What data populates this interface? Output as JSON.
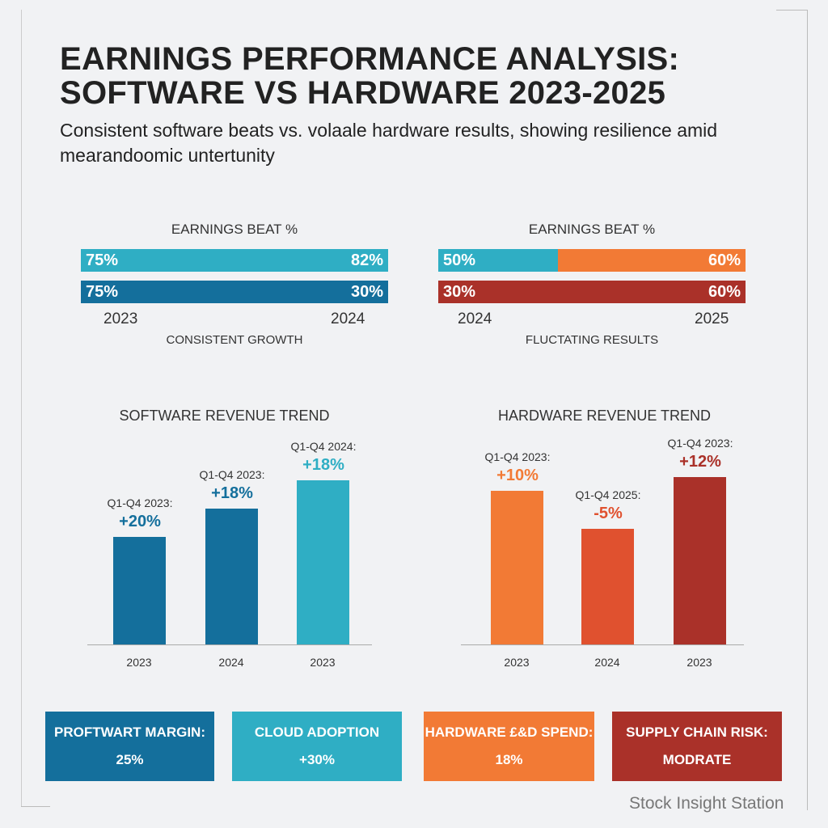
{
  "title_line1": "EARNINGS PERFORMANCE ANALYSIS:",
  "title_line2": "SOFTWARE VS HARDWARE 2023-2025",
  "subtitle": "Consistent software beats vs. volaale hardware results, showing resilience amid mearandoomic untertunity",
  "colors": {
    "teal": "#2faec4",
    "blue": "#146f9c",
    "orange": "#f27a35",
    "red": "#aa3129"
  },
  "chart_data": [
    {
      "type": "bar",
      "title": "EARNINGS BEAT %",
      "caption": "CONSISTENT GROWTH",
      "years": [
        "2023",
        "2024"
      ],
      "rows": [
        {
          "left": "75%",
          "right": "82%",
          "color": "#2faec4"
        },
        {
          "left": "75%",
          "right": "30%",
          "color": "#146f9c"
        }
      ]
    },
    {
      "type": "bar",
      "title": "EARNINGS BEAT %",
      "caption": "FLUCTATING RESULTS",
      "years": [
        "2024",
        "2025"
      ],
      "rows": [
        {
          "left": "50%",
          "right": "60%",
          "colors": [
            "#2faec4",
            "#f27a35"
          ]
        },
        {
          "left": "30%",
          "right": "60%",
          "color": "#aa3129"
        }
      ]
    },
    {
      "type": "bar",
      "title": "SOFTWARE REVENUE TREND",
      "categories": [
        "2023",
        "2024",
        "2023"
      ],
      "labels": [
        "Q1-Q4 2023:",
        "Q1-Q4 2023:",
        "Q1-Q4 2024:"
      ],
      "values": [
        "+20%",
        "+18%",
        "+18%"
      ],
      "colors": [
        "#146f9c",
        "#146f9c",
        "#2faec4"
      ]
    },
    {
      "type": "bar",
      "title": "HARDWARE REVENUE TREND",
      "categories": [
        "2023",
        "2024",
        "2023"
      ],
      "labels": [
        "Q1-Q4 2023:",
        "Q1-Q4 2025:",
        "Q1-Q4 2023:"
      ],
      "values": [
        "+10%",
        "-5%",
        "+12%"
      ],
      "colors": [
        "#f27a35",
        "#e0512f",
        "#aa3129"
      ]
    }
  ],
  "kpis": [
    {
      "label": "PROFTWART MARGIN:",
      "value": "25%",
      "color": "#146f9c"
    },
    {
      "label": "CLOUD ADOPTION",
      "value": "+30%",
      "color": "#2faec4"
    },
    {
      "label": "HARDWARE £&D SPEND:",
      "value": "18%",
      "color": "#f27a35"
    },
    {
      "label": "SUPPLY CHAIN RISK:",
      "value": "MODRATE",
      "color": "#aa3129"
    }
  ],
  "brand": "Stock Insight Station"
}
